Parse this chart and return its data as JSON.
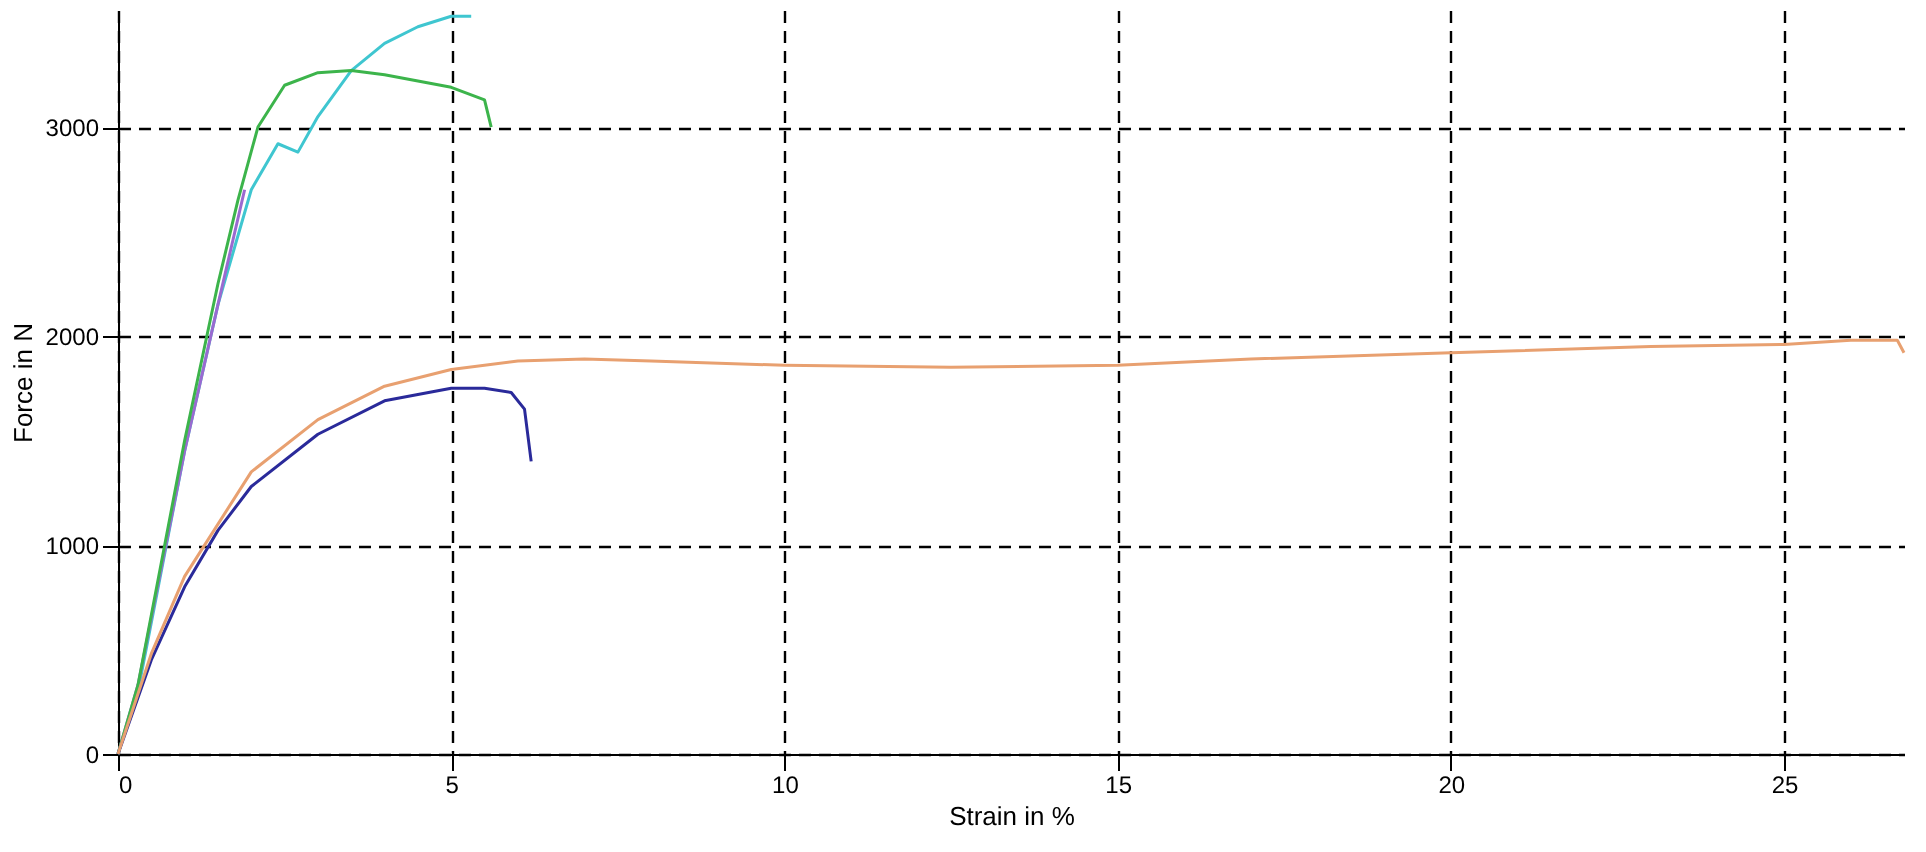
{
  "chart_data": {
    "type": "line",
    "xlabel": "Strain in %",
    "ylabel": "Force in N",
    "xlim": [
      0,
      26.8
    ],
    "ylim": [
      0,
      3560
    ],
    "xticks": [
      0,
      5,
      10,
      15,
      20,
      25
    ],
    "yticks": [
      0,
      1000,
      2000,
      3000
    ],
    "grid": true,
    "line_style": "solid",
    "series": [
      {
        "color": "#3fc6d0",
        "x": [
          0,
          0.3,
          1,
          1.5,
          2,
          2.4,
          2.7,
          3,
          3.5,
          4,
          4.5,
          5,
          5.3
        ],
        "values": [
          0,
          300,
          1450,
          2150,
          2700,
          2920,
          2880,
          3050,
          3270,
          3400,
          3480,
          3530,
          3530
        ]
      },
      {
        "color": "#9a6ad0",
        "x": [
          0,
          0.3,
          1,
          1.5,
          1.9
        ],
        "values": [
          0,
          330,
          1450,
          2150,
          2700
        ]
      },
      {
        "color": "#3cb44b",
        "x": [
          0,
          0.3,
          1,
          1.5,
          1.8,
          2.1,
          2.5,
          3,
          3.5,
          4,
          4.5,
          5,
          5.5,
          5.6
        ],
        "values": [
          0,
          330,
          1500,
          2250,
          2650,
          3000,
          3200,
          3260,
          3270,
          3250,
          3220,
          3190,
          3130,
          3000
        ]
      },
      {
        "color": "#2a2a9a",
        "x": [
          0,
          0.5,
          1,
          1.5,
          2,
          3,
          4,
          5,
          5.5,
          5.9,
          6.1,
          6.2
        ],
        "values": [
          0,
          450,
          800,
          1070,
          1280,
          1530,
          1690,
          1750,
          1750,
          1730,
          1650,
          1400
        ]
      },
      {
        "color": "#e8a070",
        "x": [
          0,
          0.5,
          1,
          2,
          3,
          4,
          5,
          6,
          7,
          8,
          10,
          12.5,
          15,
          17,
          20,
          23,
          25,
          26,
          26.7,
          26.8
        ],
        "values": [
          0,
          480,
          850,
          1350,
          1600,
          1760,
          1840,
          1880,
          1890,
          1880,
          1860,
          1850,
          1860,
          1890,
          1920,
          1950,
          1960,
          1980,
          1980,
          1920
        ]
      }
    ]
  }
}
